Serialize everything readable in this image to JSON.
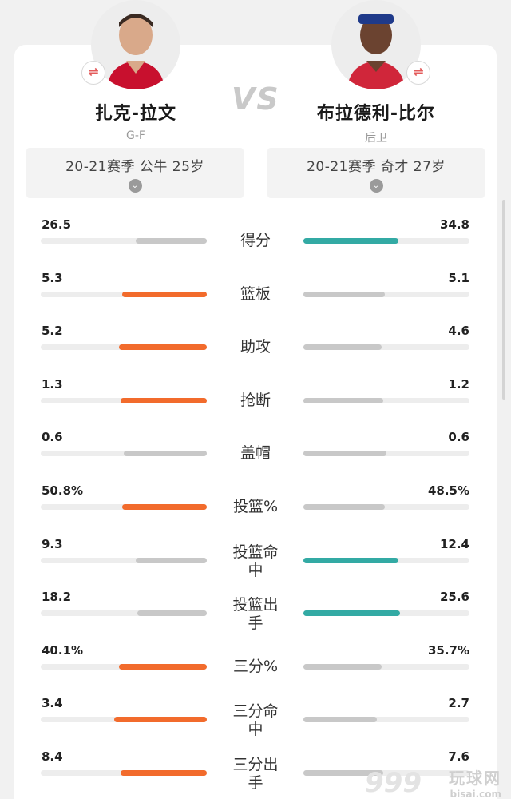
{
  "players": {
    "left": {
      "name": "扎克-拉文",
      "position": "G-F",
      "season": "20-21赛季 公牛 25岁",
      "swap_icon": "⇌",
      "jersey_color": "#c8102e"
    },
    "right": {
      "name": "布拉德利-比尔",
      "position": "后卫",
      "season": "20-21赛季 奇才 27岁",
      "swap_icon": "⇌",
      "jersey_color": "#d0263a"
    }
  },
  "vs_label": "VS",
  "chevron_icon": "⌄",
  "stats": [
    {
      "label": "得分",
      "left": "26.5",
      "right": "34.8",
      "left_ratio": 0.43,
      "right_ratio": 0.57,
      "winner": "right"
    },
    {
      "label": "篮板",
      "left": "5.3",
      "right": "5.1",
      "left_ratio": 0.51,
      "right_ratio": 0.49,
      "winner": "left"
    },
    {
      "label": "助攻",
      "left": "5.2",
      "right": "4.6",
      "left_ratio": 0.53,
      "right_ratio": 0.47,
      "winner": "left"
    },
    {
      "label": "抢断",
      "left": "1.3",
      "right": "1.2",
      "left_ratio": 0.52,
      "right_ratio": 0.48,
      "winner": "left"
    },
    {
      "label": "盖帽",
      "left": "0.6",
      "right": "0.6",
      "left_ratio": 0.5,
      "right_ratio": 0.5,
      "winner": "none"
    },
    {
      "label": "投篮%",
      "left": "50.8%",
      "right": "48.5%",
      "left_ratio": 0.51,
      "right_ratio": 0.49,
      "winner": "left"
    },
    {
      "label": "投篮命中",
      "left": "9.3",
      "right": "12.4",
      "left_ratio": 0.43,
      "right_ratio": 0.57,
      "winner": "right"
    },
    {
      "label": "投篮出手",
      "left": "18.2",
      "right": "25.6",
      "left_ratio": 0.42,
      "right_ratio": 0.58,
      "winner": "right"
    },
    {
      "label": "三分%",
      "left": "40.1%",
      "right": "35.7%",
      "left_ratio": 0.53,
      "right_ratio": 0.47,
      "winner": "left"
    },
    {
      "label": "三分命中",
      "left": "3.4",
      "right": "2.7",
      "left_ratio": 0.56,
      "right_ratio": 0.44,
      "winner": "left"
    },
    {
      "label": "三分出手",
      "left": "8.4",
      "right": "7.6",
      "left_ratio": 0.52,
      "right_ratio": 0.48,
      "winner": "left"
    }
  ],
  "colors": {
    "left_win": "#f26b2c",
    "right_win": "#33aaa4",
    "loser": "#c8c8c8"
  },
  "watermark": {
    "number": "999",
    "text": "玩球网",
    "domain": "bisai.com"
  }
}
